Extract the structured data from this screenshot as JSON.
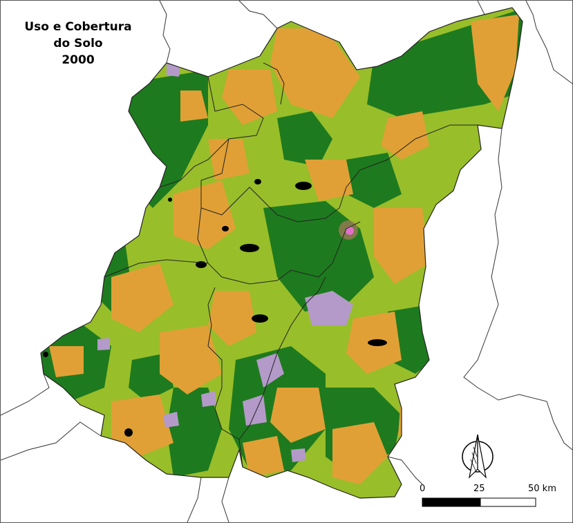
{
  "title": {
    "line1": "Uso e Cobertura",
    "line2": "do Solo",
    "line3": "2000"
  },
  "scale_bar": {
    "labels": [
      "0",
      "25",
      "50 km"
    ]
  },
  "north_arrow": {
    "icon": "north-arrow-icon"
  },
  "legend_colors": {
    "dense_forest": "#1e7a1e",
    "pasture_light_green": "#98be2a",
    "agriculture_orange": "#e1a036",
    "urban_lilac": "#b39ac9",
    "water_black": "#000000",
    "urban_core_magenta": "#e070c8",
    "boundary_lines": "#333333"
  }
}
